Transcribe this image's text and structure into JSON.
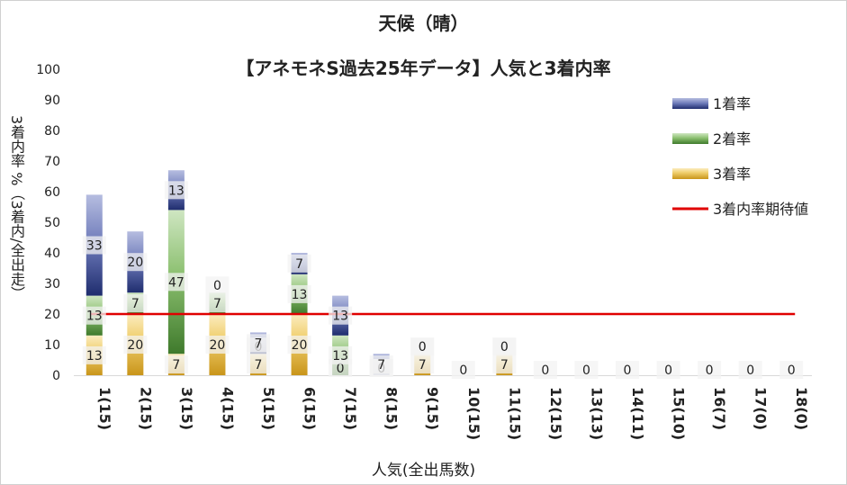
{
  "chart_data": {
    "type": "bar",
    "stacked": true,
    "title": "天候（晴）",
    "subtitle": "【アネモネS過去25年データ】人気と3着内率",
    "xlabel": "人気(全出馬数)",
    "ylabel": "3着内率 %（3着内/全出走）",
    "ylim": [
      0,
      100
    ],
    "yticks": [
      0,
      10,
      20,
      30,
      40,
      50,
      60,
      70,
      80,
      90,
      100
    ],
    "grid": false,
    "legend_position": "right",
    "categories": [
      "1(15)",
      "2(15)",
      "3(15)",
      "4(15)",
      "5(15)",
      "6(15)",
      "7(15)",
      "8(15)",
      "9(15)",
      "10(15)",
      "11(15)",
      "12(15)",
      "13(13)",
      "14(11)",
      "15(10)",
      "16(7)",
      "17(0)",
      "18(0)"
    ],
    "series": [
      {
        "name": "3着率",
        "color": "#d4a020",
        "values": [
          13,
          20,
          7,
          20,
          7,
          20,
          0,
          0,
          7,
          0,
          7,
          0,
          0,
          0,
          0,
          0,
          0,
          0
        ]
      },
      {
        "name": "2着率",
        "color": "#4e8a3a",
        "values": [
          13,
          7,
          47,
          7,
          0,
          13,
          13,
          0,
          0,
          0,
          0,
          0,
          0,
          0,
          0,
          0,
          0,
          0
        ]
      },
      {
        "name": "1着率",
        "color": "#2d3d86",
        "values": [
          33,
          20,
          13,
          0,
          7,
          7,
          13,
          7,
          0,
          0,
          0,
          0,
          0,
          0,
          0,
          0,
          0,
          0
        ]
      }
    ],
    "reference_line": {
      "name": "3着内率期待値",
      "color": "#e00000",
      "value": 20
    }
  }
}
